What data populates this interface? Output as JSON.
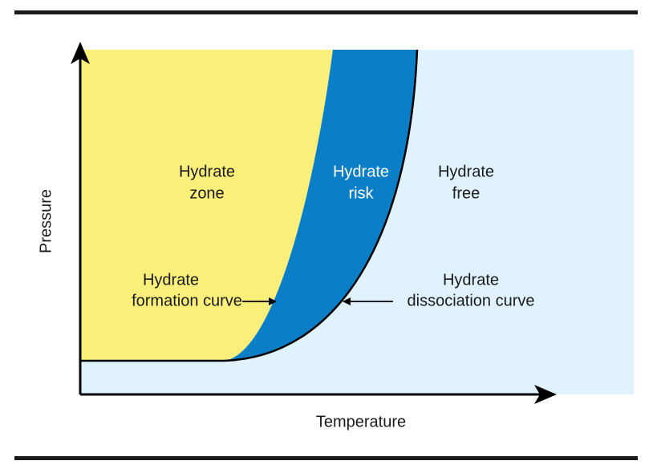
{
  "axes": {
    "y_label": "Pressure",
    "x_label": "Temperature"
  },
  "regions": [
    {
      "lines": [
        "Hydrate",
        "zone"
      ]
    },
    {
      "lines": [
        "Hydrate",
        "risk"
      ]
    },
    {
      "lines": [
        "Hydrate",
        "free"
      ]
    }
  ],
  "annotations": [
    {
      "lines": [
        "Hydrate",
        "formation curve"
      ]
    },
    {
      "lines": [
        "Hydrate",
        "dissociation curve"
      ]
    }
  ]
}
